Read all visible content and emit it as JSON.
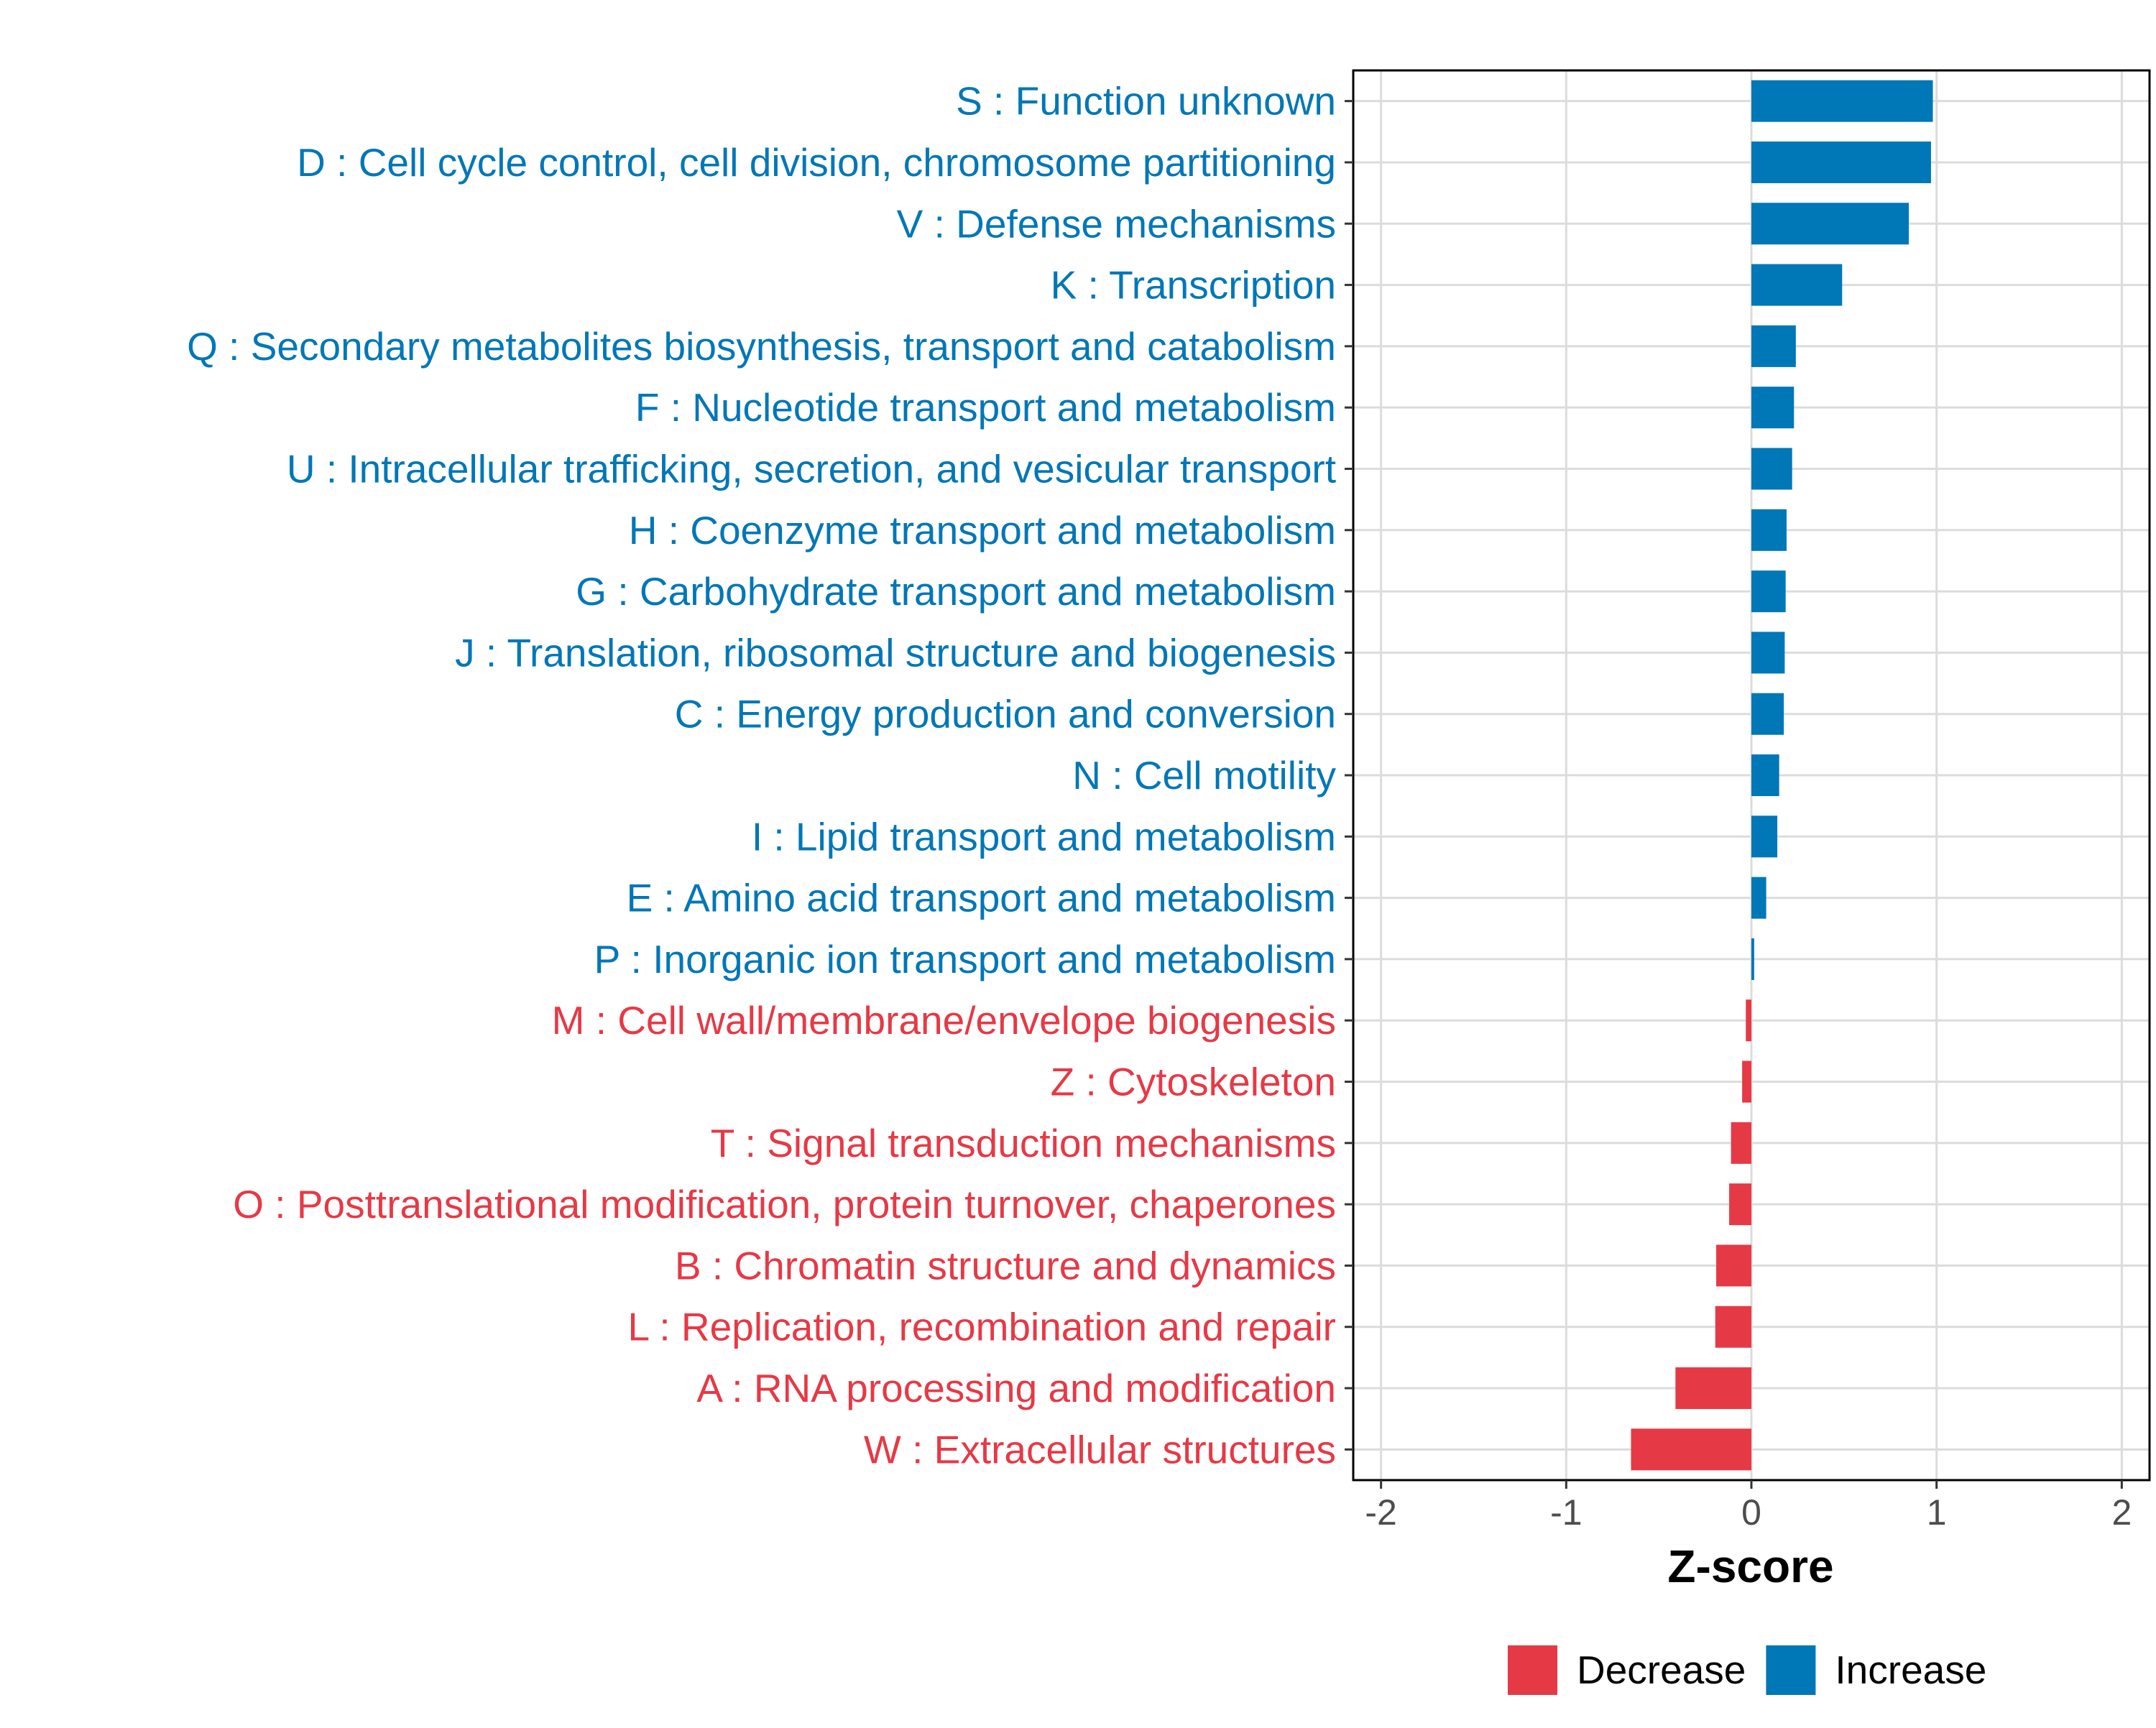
{
  "chart_data": {
    "type": "bar",
    "orientation": "horizontal",
    "xlabel": "Z-score",
    "ylabel": "",
    "xlim": [
      -2.15,
      2.15
    ],
    "xticks": [
      -2,
      -1,
      0,
      1,
      2
    ],
    "xtick_labels": [
      "-2",
      "-1",
      "0",
      "1",
      "2"
    ],
    "grid": true,
    "legend_position": "bottom",
    "colors": {
      "Decrease": "#E63946",
      "Increase": "#0077B6"
    },
    "categories": [
      "S : Function unknown",
      "D : Cell cycle control, cell division, chromosome partitioning",
      "V : Defense mechanisms",
      "K : Transcription",
      "Q : Secondary metabolites biosynthesis, transport and catabolism",
      "F : Nucleotide transport and metabolism",
      "U : Intracellular trafficking, secretion, and vesicular transport",
      "H : Coenzyme transport and metabolism",
      "G : Carbohydrate transport and metabolism",
      "J : Translation, ribosomal structure and biogenesis",
      "C : Energy production and conversion",
      "N : Cell motility",
      "I : Lipid transport and metabolism",
      "E : Amino acid transport and metabolism",
      "P : Inorganic ion transport and metabolism",
      "M : Cell wall/membrane/envelope biogenesis",
      "Z : Cytoskeleton",
      "T : Signal transduction mechanisms",
      "O : Posttranslational modification, protein turnover, chaperones",
      "B : Chromatin structure and dynamics",
      "L : Replication, recombination and repair",
      "A : RNA processing and modification",
      "W : Extracellular structures"
    ],
    "values": [
      0.98,
      0.97,
      0.85,
      0.49,
      0.24,
      0.23,
      0.22,
      0.19,
      0.185,
      0.18,
      0.175,
      0.15,
      0.14,
      0.08,
      0.015,
      -0.03,
      -0.05,
      -0.11,
      -0.12,
      -0.19,
      -0.195,
      -0.41,
      -0.65
    ],
    "groups": [
      "Increase",
      "Increase",
      "Increase",
      "Increase",
      "Increase",
      "Increase",
      "Increase",
      "Increase",
      "Increase",
      "Increase",
      "Increase",
      "Increase",
      "Increase",
      "Increase",
      "Increase",
      "Decrease",
      "Decrease",
      "Decrease",
      "Decrease",
      "Decrease",
      "Decrease",
      "Decrease",
      "Decrease"
    ],
    "legend": [
      {
        "name": "Decrease",
        "color": "#E63946"
      },
      {
        "name": "Increase",
        "color": "#0077B6"
      }
    ]
  }
}
